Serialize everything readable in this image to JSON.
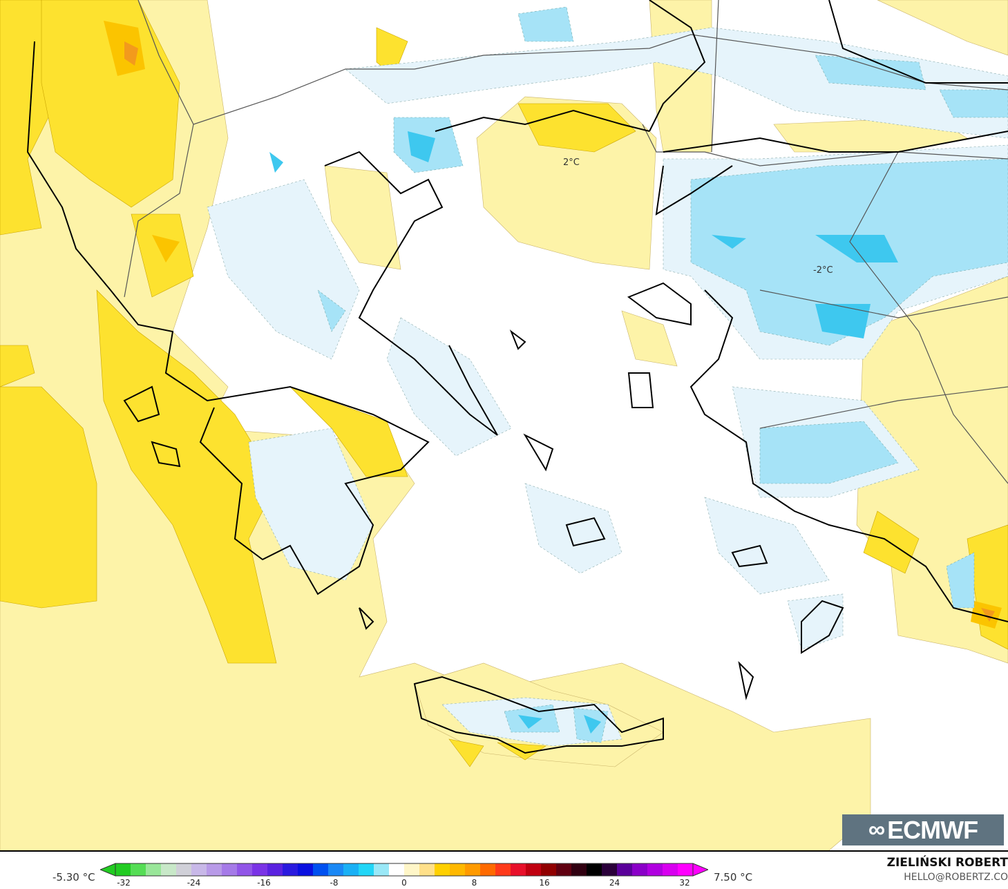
{
  "map": {
    "contour_labels": [
      "2°C",
      "-2°C"
    ],
    "colors": {
      "warm_light": "#fdf3a8",
      "warm": "#fde22f",
      "warm_strong": "#fbc400",
      "warm_max": "#f39a1c",
      "cool_light": "#e6f4fb",
      "cool": "#a6e3f7",
      "cool_strong": "#3ec8ef",
      "coast": "#000000",
      "border": "#555555"
    }
  },
  "logo": {
    "text": "ECMWF"
  },
  "legend": {
    "min_label": "-5.30 °C",
    "max_label": "7.50 °C",
    "ticks": [
      "-32",
      "-24",
      "-16",
      "-8",
      "0",
      "8",
      "16",
      "24",
      "32"
    ],
    "range": [
      -32,
      32
    ],
    "colors": [
      "#22cc22",
      "#55dd55",
      "#99e699",
      "#c8e8c8",
      "#d0d0d8",
      "#c8b8e8",
      "#b89ae8",
      "#a57ae8",
      "#9155e8",
      "#7a33e6",
      "#5a22e0",
      "#2a1adf",
      "#0a10e0",
      "#0050f0",
      "#1a88f5",
      "#1ab0f5",
      "#22d6f7",
      "#9ae8f7",
      "#ffffff",
      "#fff6c8",
      "#ffe08a",
      "#ffd000",
      "#ffb800",
      "#ff9a00",
      "#ff6a00",
      "#ff3a1a",
      "#e8102a",
      "#c00010",
      "#900000",
      "#600010",
      "#300010",
      "#000000",
      "#2a003a",
      "#5a009a",
      "#8a00c8",
      "#b000e0",
      "#d800f0",
      "#ff00ff"
    ]
  },
  "credits": {
    "author": "ZIELIŃSKI ROBERT",
    "email": "HELLO@ROBERTZ.CO"
  }
}
